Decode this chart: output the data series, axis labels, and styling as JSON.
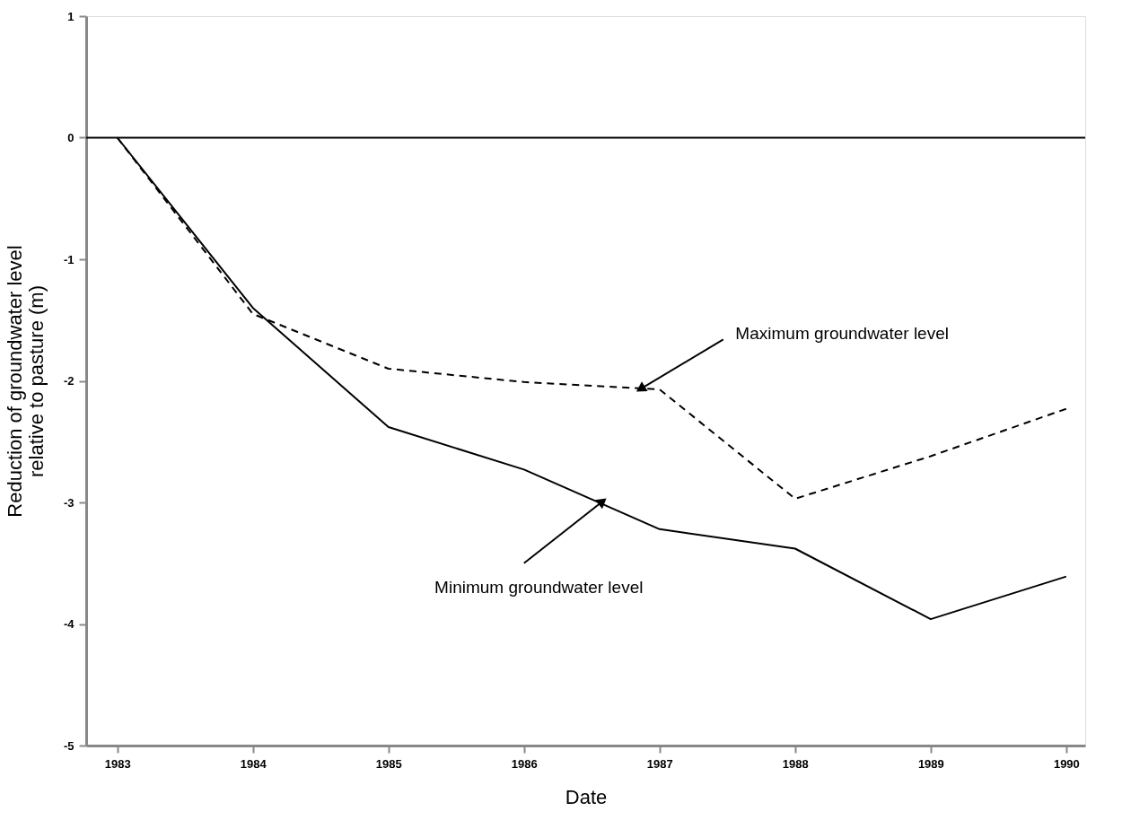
{
  "chart_data": {
    "type": "line",
    "xlabel": "Date",
    "ylabel": "Reduction of groundwater level\nrelative to pasture (m)",
    "x": [
      1983,
      1984,
      1985,
      1986,
      1987,
      1988,
      1989,
      1990
    ],
    "xlim": [
      1982.77,
      1990.14
    ],
    "xticks": [
      1983,
      1984,
      1985,
      1986,
      1987,
      1988,
      1989,
      1990
    ],
    "ylim": [
      -5,
      1
    ],
    "yticks": [
      -5,
      -4,
      -3,
      -2,
      -1,
      0,
      1
    ],
    "series": [
      {
        "color": "#000000",
        "line_style": "dashed",
        "values": [
          0,
          -1.45,
          -1.9,
          -2.01,
          -2.07,
          -2.97,
          -2.62,
          -2.23
        ]
      },
      {
        "color": "#000000",
        "line_style": "solid",
        "values": [
          0,
          -1.4,
          -2.38,
          -2.73,
          -3.22,
          -3.38,
          -3.96,
          -3.61
        ]
      }
    ],
    "ref_lines": [
      {
        "axis": "y",
        "value": 0,
        "color": "#000000"
      }
    ],
    "annotations": [
      {
        "text": "Maximum groundwater level",
        "x": 1986.87,
        "y": -2.06
      },
      {
        "text": "Minimum groundwater level",
        "x": 1986.57,
        "y": -3.0
      }
    ],
    "grid": false,
    "marker": "none"
  }
}
